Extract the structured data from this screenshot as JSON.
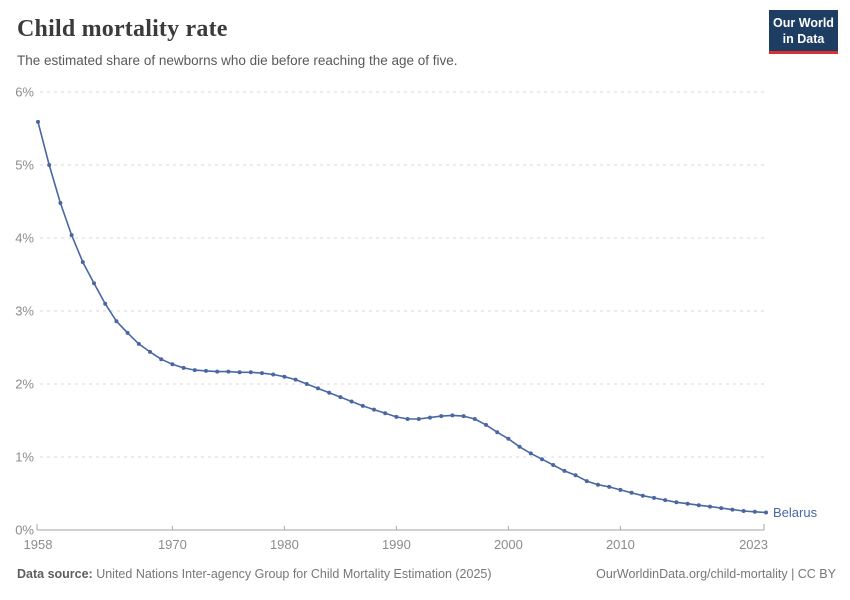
{
  "header": {
    "title": "Child mortality rate",
    "subtitle": "The estimated share of newborns who die before reaching the age of five.",
    "logo": {
      "line1": "Our World",
      "line2": "in Data"
    }
  },
  "chart_data": {
    "type": "line",
    "title": "Child mortality rate",
    "entity_label": "Belarus",
    "grid": "horizontal-dashed",
    "legend_position": "end-of-line",
    "xlim": [
      1958,
      2023
    ],
    "ylim": [
      0,
      6
    ],
    "y_ticks": [
      0,
      1,
      2,
      3,
      4,
      5,
      6
    ],
    "y_tick_suffix": "%",
    "x_ticks": [
      1958,
      1970,
      1980,
      1990,
      2000,
      2010,
      2023
    ],
    "series": [
      {
        "name": "Belarus",
        "color": "#4a67a3",
        "x": [
          1958,
          1959,
          1960,
          1961,
          1962,
          1963,
          1964,
          1965,
          1966,
          1967,
          1968,
          1969,
          1970,
          1971,
          1972,
          1973,
          1974,
          1975,
          1976,
          1977,
          1978,
          1979,
          1980,
          1981,
          1982,
          1983,
          1984,
          1985,
          1986,
          1987,
          1988,
          1989,
          1990,
          1991,
          1992,
          1993,
          1994,
          1995,
          1996,
          1997,
          1998,
          1999,
          2000,
          2001,
          2002,
          2003,
          2004,
          2005,
          2006,
          2007,
          2008,
          2009,
          2010,
          2011,
          2012,
          2013,
          2014,
          2015,
          2016,
          2017,
          2018,
          2019,
          2020,
          2021,
          2022,
          2023
        ],
        "values": [
          5.59,
          5.0,
          4.48,
          4.04,
          3.67,
          3.38,
          3.1,
          2.86,
          2.7,
          2.55,
          2.44,
          2.34,
          2.27,
          2.22,
          2.19,
          2.18,
          2.17,
          2.17,
          2.16,
          2.16,
          2.15,
          2.13,
          2.1,
          2.06,
          2.0,
          1.94,
          1.88,
          1.82,
          1.76,
          1.7,
          1.65,
          1.6,
          1.55,
          1.52,
          1.52,
          1.54,
          1.56,
          1.57,
          1.56,
          1.52,
          1.44,
          1.34,
          1.25,
          1.14,
          1.05,
          0.97,
          0.89,
          0.81,
          0.75,
          0.67,
          0.62,
          0.59,
          0.55,
          0.51,
          0.47,
          0.44,
          0.41,
          0.38,
          0.36,
          0.34,
          0.32,
          0.3,
          0.28,
          0.26,
          0.25,
          0.24
        ]
      }
    ],
    "colors": {
      "line": "#4a67a3",
      "gridline": "#dadada",
      "axis": "#a5a5a5",
      "tick_label": "#8c8c8c"
    }
  },
  "footer": {
    "source_label": "Data source:",
    "source_text": " United Nations Inter-agency Group for Child Mortality Estimation (2025)",
    "link_text": "OurWorldinData.org/child-mortality | CC BY"
  }
}
